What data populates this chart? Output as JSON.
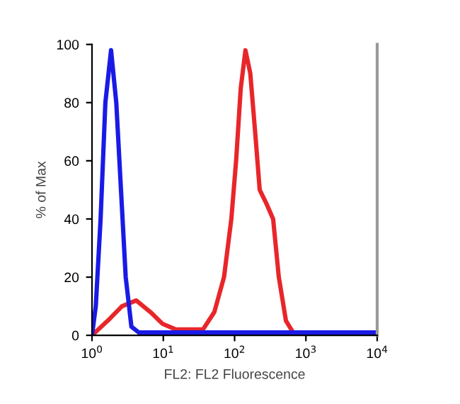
{
  "chart_data": {
    "type": "line",
    "xlabel": "FL2: FL2 Fluorescence",
    "ylabel": "% of Max",
    "log": "x",
    "xlim": [
      1,
      10000
    ],
    "ylim": [
      0,
      100
    ],
    "xticks": [
      {
        "value": 1,
        "label": "10$^{0}$"
      },
      {
        "value": 10,
        "label": "10$^{1}$"
      },
      {
        "value": 100,
        "label": "10$^{2}$"
      },
      {
        "value": 1000,
        "label": "10$^{3}$"
      },
      {
        "value": 10000,
        "label": "10$^{4}$"
      }
    ],
    "yticks": [
      0,
      20,
      40,
      60,
      80,
      100
    ],
    "grid": false,
    "marker": "none",
    "line_style": "solid",
    "series": [
      {
        "color": "#e8262a",
        "x": [
          1,
          1.66,
          2.63,
          4.17,
          6.6,
          9.7,
          15,
          36,
          52,
          71,
          90,
          105,
          122,
          142,
          166,
          194,
          225,
          283,
          347,
          417,
          525,
          661,
          1230
        ],
        "values": [
          0,
          5,
          10,
          12,
          8,
          4,
          2,
          2,
          8,
          20,
          40,
          60,
          85,
          98,
          90,
          70,
          50,
          45,
          40,
          20,
          5,
          1,
          0
        ]
      },
      {
        "color": "#1a1ae6",
        "x": [
          1,
          1.13,
          1.32,
          1.54,
          1.85,
          2.19,
          2.55,
          2.97,
          3.57,
          4.5,
          10000
        ],
        "values": [
          0,
          10,
          40,
          80,
          98,
          80,
          50,
          20,
          3,
          1,
          1
        ]
      }
    ]
  }
}
